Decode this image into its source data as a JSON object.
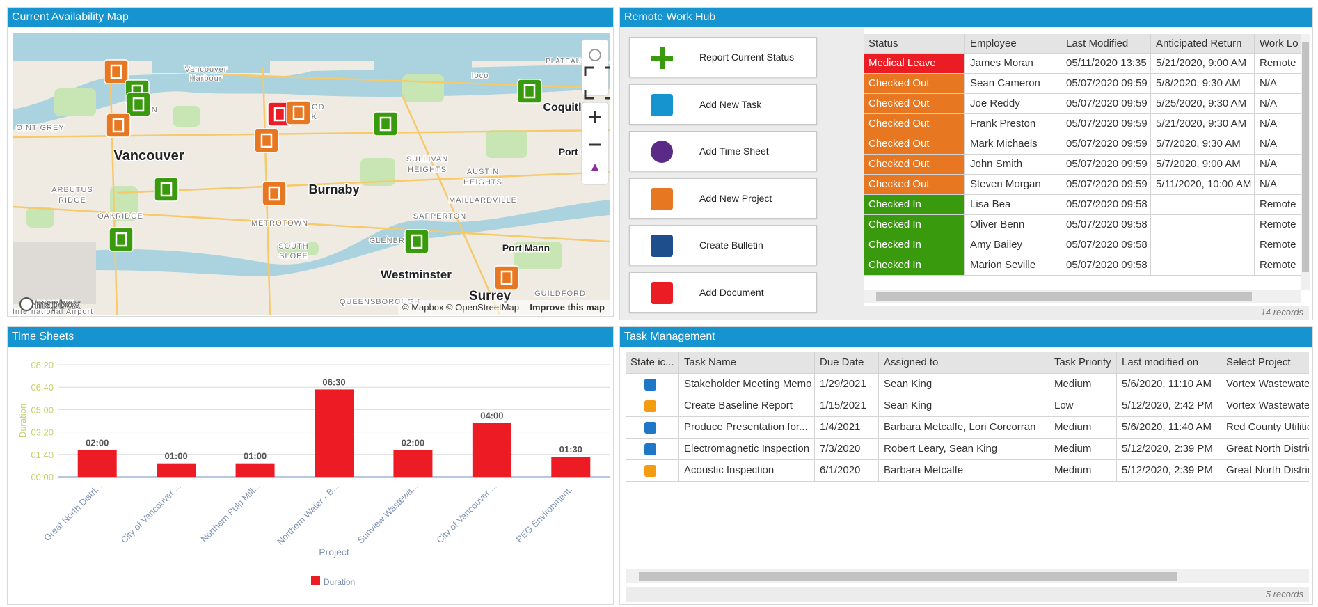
{
  "map_panel": {
    "title": "Current Availability Map",
    "labels": [
      "Vancouver",
      "Harbour",
      "PLATEAU",
      "Ioco",
      "Coquitl",
      "Port Co",
      "OINT GREY",
      "Vancouver",
      "ARBUTUS",
      "RIDGE",
      "OAKRIDGE",
      "Burnaby",
      "SULLIVAN",
      "HEIGHTS",
      "AUSTIN",
      "HEIGHTS",
      "MAILLARDVILLE",
      "METROTOWN",
      "SAPPERTON",
      "GLENBROOK",
      "SOUTH",
      "SLOPE",
      "Port Mann",
      "Westminster",
      "QUEENSBOROUGH",
      "GUILDFORD",
      "Surrey",
      "Vancouver",
      "International Airport",
      "TWOOD",
      "ARK",
      "TOWN"
    ],
    "attribution": "© Mapbox © OpenStreetMap",
    "improve": "Improve this map",
    "logo": "mapbox"
  },
  "hub_panel": {
    "title": "Remote Work Hub",
    "buttons": [
      "Report Current Status",
      "Add New Task",
      "Add Time Sheet",
      "Add New Project",
      "Create Bulletin",
      "Add Document"
    ],
    "columns": [
      "Status",
      "Employee",
      "Last Modified",
      "Anticipated Return",
      "Work Lo"
    ],
    "rows": [
      {
        "status": "Medical Leave",
        "color": "#ec1c24",
        "employee": "James Moran",
        "modified": "05/11/2020 13:35",
        "return": "5/21/2020, 9:00 AM",
        "location": "Remote"
      },
      {
        "status": "Checked Out",
        "color": "#e87722",
        "employee": "Sean Cameron",
        "modified": "05/07/2020 09:59",
        "return": "5/8/2020, 9:30 AM",
        "location": "N/A"
      },
      {
        "status": "Checked Out",
        "color": "#e87722",
        "employee": "Joe Reddy",
        "modified": "05/07/2020 09:59",
        "return": "5/25/2020, 9:30 AM",
        "location": "N/A"
      },
      {
        "status": "Checked Out",
        "color": "#e87722",
        "employee": "Frank Preston",
        "modified": "05/07/2020 09:59",
        "return": "5/21/2020, 9:30 AM",
        "location": "N/A"
      },
      {
        "status": "Checked Out",
        "color": "#e87722",
        "employee": "Mark Michaels",
        "modified": "05/07/2020 09:59",
        "return": "5/7/2020, 9:30 AM",
        "location": "N/A"
      },
      {
        "status": "Checked Out",
        "color": "#e87722",
        "employee": "John Smith",
        "modified": "05/07/2020 09:59",
        "return": "5/7/2020, 9:00 AM",
        "location": "N/A"
      },
      {
        "status": "Checked Out",
        "color": "#e87722",
        "employee": "Steven Morgan",
        "modified": "05/07/2020 09:59",
        "return": "5/11/2020, 10:00 AM",
        "location": "N/A"
      },
      {
        "status": "Checked In",
        "color": "#3a9a0e",
        "employee": "Lisa Bea",
        "modified": "05/07/2020 09:58",
        "location": "Remote"
      },
      {
        "status": "Checked In",
        "color": "#3a9a0e",
        "employee": "Oliver Benn",
        "modified": "05/07/2020 09:58",
        "location": "Remote"
      },
      {
        "status": "Checked In",
        "color": "#3a9a0e",
        "employee": "Amy Bailey",
        "modified": "05/07/2020 09:58",
        "location": "Remote"
      },
      {
        "status": "Checked In",
        "color": "#3a9a0e",
        "employee": "Marion Seville",
        "modified": "05/07/2020 09:58",
        "location": "Remote"
      }
    ],
    "footer": "14 records"
  },
  "chart_data": {
    "type": "bar",
    "title": "Time Sheets",
    "ylabel": "Duration",
    "xlabel": "Project",
    "categories": [
      "Great North Distri...",
      "City of Vancouver ...",
      "Northern Pulp Mill...",
      "Northern Water - B...",
      "Sunview Wastewa...",
      "City of Vancouver ...",
      "PEG Environment..."
    ],
    "series": [
      {
        "name": "Duration",
        "color": "#ed1c24",
        "values": [
          120,
          60,
          60,
          390,
          120,
          240,
          90
        ],
        "value_labels": [
          "02:00",
          "01:00",
          "01:00",
          "06:30",
          "02:00",
          "04:00",
          "01:30"
        ]
      }
    ],
    "ylim": [
      0,
      500
    ],
    "yticks": [
      {
        "value": 0,
        "label": "00:00"
      },
      {
        "value": 100,
        "label": "01:40"
      },
      {
        "value": 200,
        "label": "03:20"
      },
      {
        "value": 300,
        "label": "05:00"
      },
      {
        "value": 400,
        "label": "06:40"
      },
      {
        "value": 500,
        "label": "08:20"
      }
    ],
    "grid": true
  },
  "task_panel": {
    "title": "Task Management",
    "columns": [
      "State ic...",
      "Task Name",
      "Due Date",
      "Assigned to",
      "Task Priority",
      "Last modified on",
      "Select Project"
    ],
    "rows": [
      {
        "icon_color": "#1f77c8",
        "cells": [
          "Stakeholder Meeting Memo",
          "1/29/2021",
          "Sean King",
          "Medium",
          "5/6/2020, 11:10 AM",
          "Vortex Wastewate"
        ]
      },
      {
        "icon_color": "#f39c12",
        "cells": [
          "Create Baseline Report",
          "1/15/2021",
          "Sean King",
          "Low",
          "5/12/2020, 2:42 PM",
          "Vortex Wastewate"
        ]
      },
      {
        "icon_color": "#1f77c8",
        "cells": [
          "Produce Presentation for...",
          "1/4/2021",
          "Barbara Metcalfe, Lori Corcorran",
          "Medium",
          "5/6/2020, 11:40 AM",
          "Red County Utilitie"
        ]
      },
      {
        "icon_color": "#1f77c8",
        "cells": [
          "Electromagnetic Inspection",
          "7/3/2020",
          "Robert Leary, Sean King",
          "Medium",
          "5/12/2020, 2:39 PM",
          "Great North Distric"
        ]
      },
      {
        "icon_color": "#f39c12",
        "cells": [
          "Acoustic Inspection",
          "6/1/2020",
          "Barbara Metcalfe",
          "Medium",
          "5/12/2020, 2:39 PM",
          "Great North Distric"
        ]
      }
    ],
    "footer": "5 records"
  }
}
